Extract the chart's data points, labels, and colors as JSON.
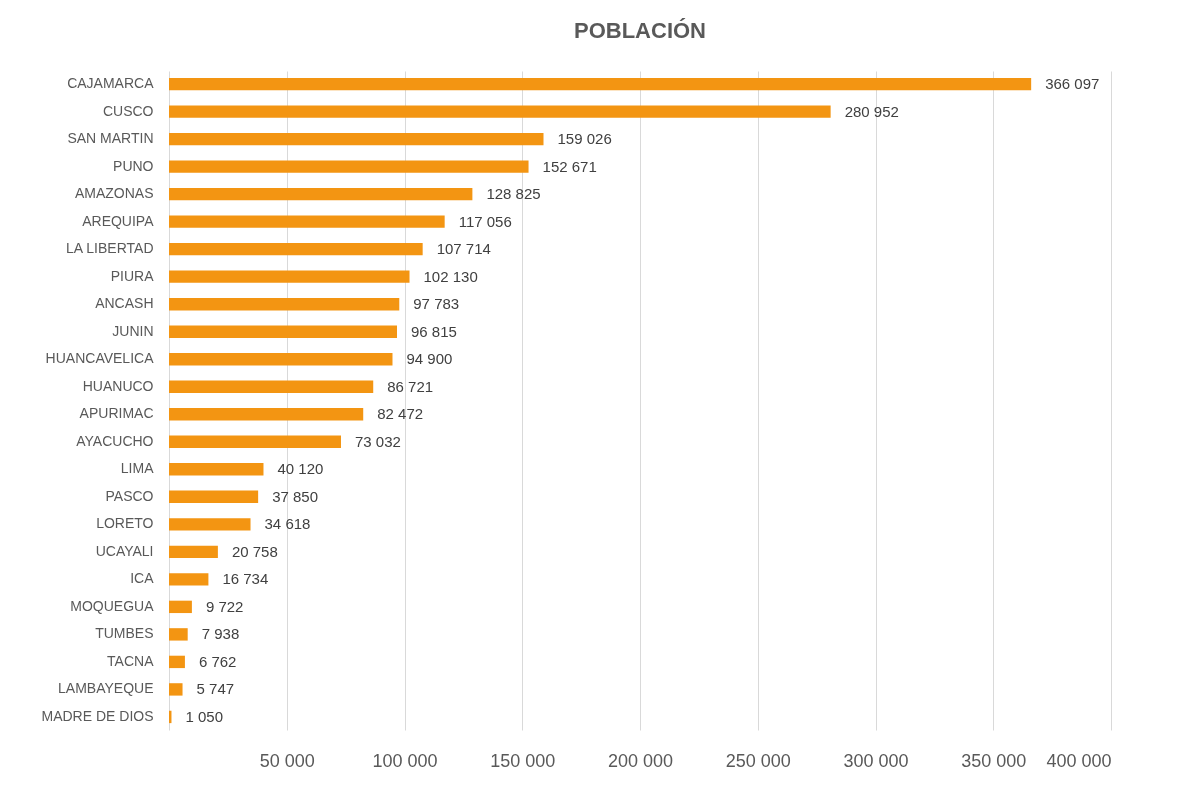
{
  "chart_data": {
    "type": "bar",
    "title": "POBLACIÓN",
    "orientation": "horizontal",
    "categories": [
      "CAJAMARCA",
      "CUSCO",
      "SAN MARTIN",
      "PUNO",
      "AMAZONAS",
      "AREQUIPA",
      "LA LIBERTAD",
      "PIURA",
      "ANCASH",
      "JUNIN",
      "HUANCAVELICA",
      "HUANUCO",
      "APURIMAC",
      "AYACUCHO",
      "LIMA",
      "PASCO",
      "LORETO",
      "UCAYALI",
      "ICA",
      "MOQUEGUA",
      "TUMBES",
      "TACNA",
      "LAMBAYEQUE",
      "MADRE DE DIOS"
    ],
    "values": [
      366097,
      280952,
      159026,
      152671,
      128825,
      117056,
      107714,
      102130,
      97783,
      96815,
      94900,
      86721,
      82472,
      73032,
      40120,
      37850,
      34618,
      20758,
      16734,
      9722,
      7938,
      6762,
      5747,
      1050
    ],
    "value_labels": [
      "366 097",
      "280 952",
      "159 026",
      "152 671",
      "128 825",
      "117 056",
      "107 714",
      "102 130",
      "97 783",
      "96 815",
      "94 900",
      "86 721",
      "82 472",
      "73 032",
      "40 120",
      "37 850",
      "34 618",
      "20 758",
      "16 734",
      "9 722",
      "7 938",
      "6 762",
      "5 747",
      "1 050"
    ],
    "color": "#f39512",
    "xlim": [
      0,
      400000
    ],
    "xticks": [
      {
        "value": 0,
        "label": null
      },
      {
        "value": 50000,
        "label": "50 000"
      },
      {
        "value": 100000,
        "label": "100 000"
      },
      {
        "value": 150000,
        "label": "150 000"
      },
      {
        "value": 200000,
        "label": "200 000"
      },
      {
        "value": 250000,
        "label": "250 000"
      },
      {
        "value": 300000,
        "label": "300 000"
      },
      {
        "value": 350000,
        "label": "350 000"
      },
      {
        "value": 400000,
        "label": "400 000"
      }
    ],
    "grid": "x"
  }
}
